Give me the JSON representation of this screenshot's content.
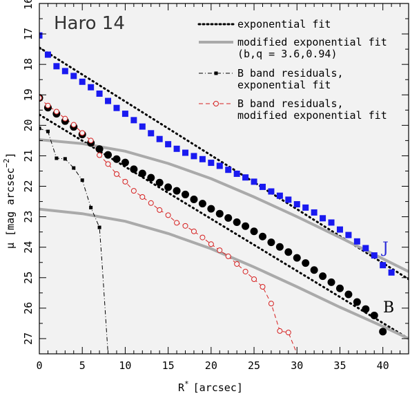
{
  "chart_data": {
    "type": "scatter",
    "title": "Haro 14",
    "xlabel": "R",
    "xlabel_superscript": "*",
    "xlabel_unit": "[arcsec]",
    "ylabel": "μ [mag arcsec",
    "ylabel_superscript": "−2",
    "ylabel_close": "]",
    "xlim": [
      0,
      43
    ],
    "ylim": [
      27.5,
      16
    ],
    "x_ticks": [
      0,
      5,
      10,
      15,
      20,
      25,
      30,
      35,
      40
    ],
    "y_ticks": [
      16,
      17,
      18,
      19,
      20,
      21,
      22,
      23,
      24,
      25,
      26,
      27
    ],
    "background": "#f2f2f2",
    "legend_position": "top-right",
    "legend": [
      {
        "label_lines": [
          "exponential fit"
        ],
        "style": "dotted",
        "color": "#000000"
      },
      {
        "label_lines": [
          "modified exponential fit",
          "(b,q = 3.6,0.94)"
        ],
        "style": "thick-gray",
        "color": "#aaaaaa"
      },
      {
        "label_lines": [
          "B band residuals,",
          "exponential fit"
        ],
        "style": "dashdot-square",
        "color": "#000000"
      },
      {
        "label_lines": [
          "B band residuals,",
          "modified exponential fit"
        ],
        "style": "dashed-circle",
        "color": "#d62020"
      }
    ],
    "band_labels": [
      {
        "text": "J",
        "x": 41.3,
        "y": 24.1,
        "color": "#2a2ad8"
      },
      {
        "text": "B",
        "x": 41.5,
        "y": 26.1,
        "color": "#000000"
      }
    ],
    "series": [
      {
        "name": "J",
        "marker": "square",
        "color": "#1a1af0",
        "x": [
          0,
          1,
          2,
          3,
          4,
          5,
          6,
          7,
          8,
          9,
          10,
          11,
          12,
          13,
          14,
          15,
          16,
          17,
          18,
          19,
          20,
          21,
          22,
          23,
          24,
          25,
          26,
          27,
          28,
          29,
          30,
          31,
          32,
          33,
          34,
          35,
          36,
          37,
          38,
          39,
          40,
          41
        ],
        "y": [
          17.05,
          17.68,
          18.06,
          18.22,
          18.38,
          18.57,
          18.75,
          18.96,
          19.2,
          19.43,
          19.62,
          19.83,
          20.04,
          20.26,
          20.45,
          20.62,
          20.77,
          20.9,
          21.01,
          21.11,
          21.23,
          21.33,
          21.46,
          21.59,
          21.71,
          21.85,
          22.02,
          22.17,
          22.31,
          22.44,
          22.59,
          22.7,
          22.86,
          23.05,
          23.19,
          23.42,
          23.6,
          23.81,
          24.03,
          24.27,
          24.59,
          24.83
        ]
      },
      {
        "name": "B",
        "marker": "circle",
        "color": "#000000",
        "x": [
          0,
          1,
          2,
          3,
          4,
          5,
          6,
          7,
          8,
          9,
          10,
          11,
          12,
          13,
          14,
          15,
          16,
          17,
          18,
          19,
          20,
          21,
          22,
          23,
          24,
          25,
          26,
          27,
          28,
          29,
          30,
          31,
          32,
          33,
          34,
          35,
          36,
          37,
          38,
          39,
          40
        ],
        "y": [
          19.1,
          19.42,
          19.62,
          19.86,
          20.05,
          20.3,
          20.58,
          20.78,
          20.97,
          21.11,
          21.22,
          21.44,
          21.58,
          21.72,
          21.88,
          22.03,
          22.15,
          22.27,
          22.43,
          22.57,
          22.74,
          22.9,
          23.04,
          23.18,
          23.31,
          23.48,
          23.65,
          23.84,
          23.99,
          24.16,
          24.35,
          24.52,
          24.75,
          24.95,
          25.15,
          25.35,
          25.55,
          25.8,
          26.03,
          26.24,
          26.77
        ]
      },
      {
        "name": "B band residuals, exponential fit",
        "marker": "small-square",
        "line": "dashdot",
        "color": "#000000",
        "x": [
          0,
          1,
          2,
          3,
          4,
          5,
          6,
          7,
          7.3,
          8
        ],
        "y": [
          20.1,
          20.2,
          21.08,
          21.1,
          21.4,
          21.8,
          22.7,
          23.35,
          24.5,
          27.5
        ]
      },
      {
        "name": "B band residuals, modified exponential fit",
        "marker": "open-circle",
        "line": "dashed",
        "color": "#d62020",
        "x": [
          0,
          1,
          2,
          3,
          4,
          5,
          6,
          7,
          8,
          9,
          10,
          11,
          12,
          13,
          14,
          15,
          16,
          17,
          18,
          19,
          20,
          21,
          22,
          23,
          24,
          25,
          26,
          27,
          28,
          29,
          30
        ],
        "y": [
          19.1,
          19.35,
          19.55,
          19.78,
          19.98,
          20.25,
          20.5,
          20.98,
          21.27,
          21.6,
          21.85,
          22.15,
          22.35,
          22.55,
          22.78,
          22.95,
          23.2,
          23.3,
          23.48,
          23.68,
          23.9,
          24.1,
          24.3,
          24.55,
          24.8,
          25.05,
          25.3,
          25.85,
          26.75,
          26.8,
          27.5
        ]
      },
      {
        "name": "exponential fit J",
        "line": "dotted",
        "color": "#000000",
        "x": [
          0,
          43
        ],
        "y": [
          17.45,
          25.05
        ]
      },
      {
        "name": "exponential fit B",
        "line": "dotted",
        "color": "#000000",
        "x": [
          0,
          43
        ],
        "y": [
          19.65,
          27.0
        ]
      },
      {
        "name": "modified exponential fit J",
        "line": "thick-gray",
        "color": "#aaaaaa",
        "x": [
          0,
          5,
          10,
          15,
          20,
          25,
          30,
          35,
          40,
          43
        ],
        "y": [
          20.47,
          20.6,
          20.85,
          21.25,
          21.75,
          22.35,
          23.0,
          23.68,
          24.38,
          24.8
        ]
      },
      {
        "name": "modified exponential fit B",
        "line": "thick-gray",
        "color": "#aaaaaa",
        "x": [
          0,
          5,
          10,
          15,
          20,
          25,
          30,
          35,
          40,
          43
        ],
        "y": [
          22.75,
          22.9,
          23.15,
          23.55,
          24.05,
          24.65,
          25.3,
          25.97,
          26.6,
          27.0
        ]
      }
    ]
  }
}
